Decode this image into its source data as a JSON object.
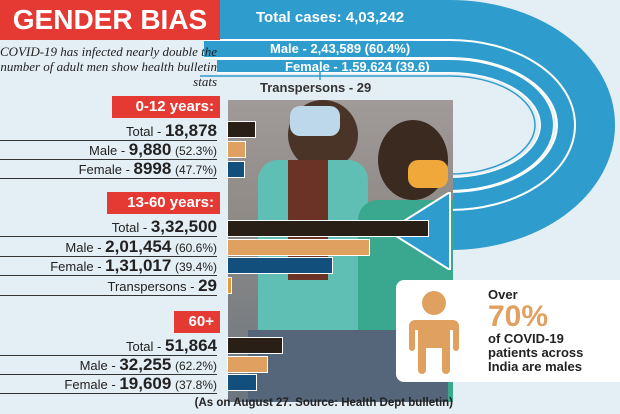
{
  "title": "GENDER BIAS",
  "subtitle": "COVID-19 has infected nearly double the number of adult men show health bulletin stats",
  "overall": {
    "total": "Total cases: 4,03,242",
    "male": "Male - 2,43,589 (60.4%)",
    "female": "Female - 1,59,624 (39.6)",
    "transpersons": "Transpersons - 29"
  },
  "groups": [
    {
      "label": "0-12 years:",
      "rows": [
        {
          "name": "Total",
          "value": "18,878",
          "pct": ""
        },
        {
          "name": "Male",
          "value": "9,880",
          "pct": "(52.3%)"
        },
        {
          "name": "Female",
          "value": "8998",
          "pct": "(47.7%)"
        }
      ]
    },
    {
      "label": "13-60 years:",
      "rows": [
        {
          "name": "Total",
          "value": "3,32,500",
          "pct": ""
        },
        {
          "name": "Male",
          "value": "2,01,454",
          "pct": "(60.6%)"
        },
        {
          "name": "Female",
          "value": "1,31,017",
          "pct": "(39.4%)"
        },
        {
          "name": "Transpersons",
          "value": "29",
          "pct": ""
        }
      ]
    },
    {
      "label": "60+",
      "rows": [
        {
          "name": "Total",
          "value": "51,864",
          "pct": ""
        },
        {
          "name": "Male",
          "value": "32,255",
          "pct": "(62.2%)"
        },
        {
          "name": "Female",
          "value": "19,609",
          "pct": "(37.8%)"
        }
      ]
    }
  ],
  "callout": {
    "over": "Over",
    "big": "70%",
    "rest": "of COVID-19 patients across India are males",
    "icon": "person-icon"
  },
  "footer": "(As on August 27. Source: Health Dept bulletin)",
  "colors": {
    "red": "#e53a34",
    "blue": "#2e9ccc",
    "total": "#2a1f17",
    "male": "#e0a060",
    "female": "#134f7c",
    "trans": "#e8983c"
  },
  "chart_data": {
    "type": "bar",
    "orientation": "horizontal",
    "groups": [
      {
        "label": "0-12 years:",
        "bars": [
          {
            "name": "Total",
            "value": 18878
          },
          {
            "name": "Male",
            "value": 9880
          },
          {
            "name": "Female",
            "value": 8998
          }
        ]
      },
      {
        "label": "13-60 years:",
        "bars": [
          {
            "name": "Total",
            "value": 332500
          },
          {
            "name": "Male",
            "value": 201454
          },
          {
            "name": "Female",
            "value": 131017
          },
          {
            "name": "Transpersons",
            "value": 29
          }
        ]
      },
      {
        "label": "60+",
        "bars": [
          {
            "name": "Total",
            "value": 51864
          },
          {
            "name": "Male",
            "value": 32255
          },
          {
            "name": "Female",
            "value": 19609
          }
        ]
      }
    ],
    "overall": {
      "Total": 403242,
      "Male": 243589,
      "Female": 159624,
      "Transpersons": 29
    }
  }
}
